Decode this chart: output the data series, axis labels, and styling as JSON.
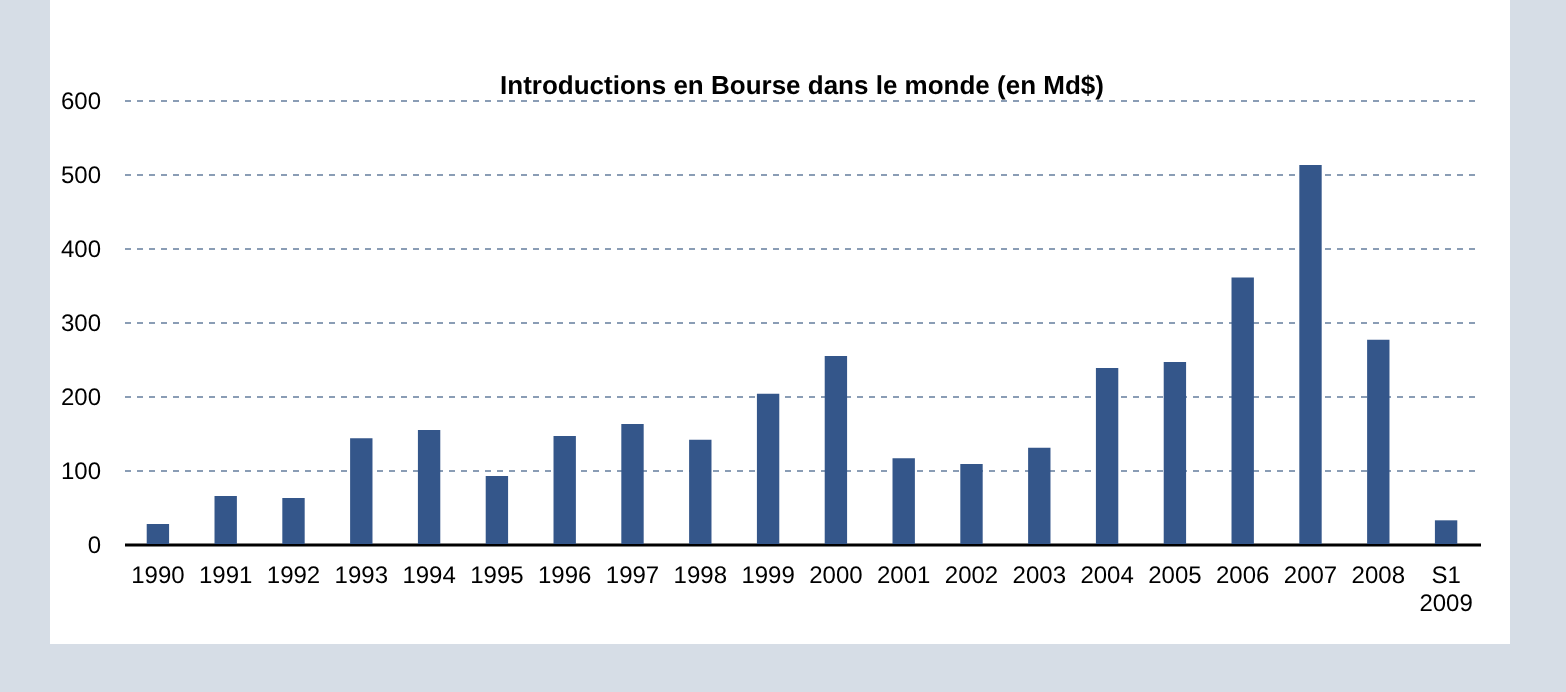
{
  "chart_data": {
    "type": "bar",
    "title": "Introductions en Bourse dans le monde (en Md$)",
    "categories": [
      "1990",
      "1991",
      "1992",
      "1993",
      "1994",
      "1995",
      "1996",
      "1997",
      "1998",
      "1999",
      "2000",
      "2001",
      "2002",
      "2003",
      "2004",
      "2005",
      "2006",
      "2007",
      "2008",
      "S1 2009"
    ],
    "values": [
      27,
      65,
      62,
      143,
      154,
      92,
      146,
      162,
      141,
      203,
      254,
      116,
      108,
      130,
      238,
      246,
      360,
      512,
      276,
      32
    ],
    "color": "#34568a",
    "ylim": [
      0,
      600
    ],
    "yticks": [
      0,
      100,
      200,
      300,
      400,
      500,
      600
    ],
    "grid": "y"
  }
}
